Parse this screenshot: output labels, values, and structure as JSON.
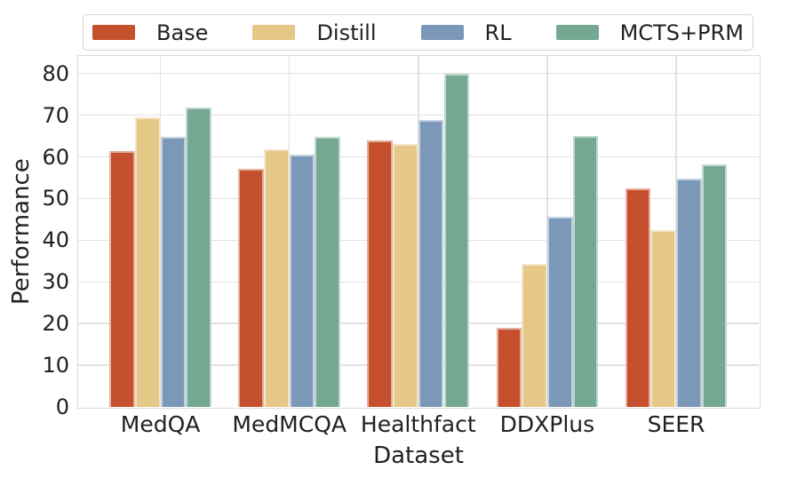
{
  "chart_data": {
    "type": "bar",
    "title": "",
    "xlabel": "Dataset",
    "ylabel": "Performance",
    "categories": [
      "MedQA",
      "MedMCQA",
      "Healthfact",
      "DDXPlus",
      "SEER"
    ],
    "series": [
      {
        "name": "Base",
        "color": "#c4502d",
        "values": [
          61.5,
          57.2,
          63.9,
          19.0,
          52.4
        ]
      },
      {
        "name": "Distill",
        "color": "#e5c787",
        "values": [
          69.6,
          61.9,
          63.1,
          34.4,
          42.5
        ]
      },
      {
        "name": "RL",
        "color": "#7b98b8",
        "values": [
          64.7,
          60.5,
          68.8,
          45.7,
          54.8
        ]
      },
      {
        "name": "MCTS+PRM",
        "color": "#74a892",
        "values": [
          71.8,
          64.9,
          79.9,
          65.1,
          58.2
        ]
      }
    ],
    "yticks": [
      0,
      10,
      20,
      30,
      40,
      50,
      60,
      70,
      80
    ],
    "ylim": [
      0,
      84.2
    ],
    "grid": true,
    "legend_position": "top",
    "colors": {
      "grid": "#e2e2e2",
      "spine": "#dadada",
      "text": "#212121",
      "background": "#ffffff"
    }
  }
}
